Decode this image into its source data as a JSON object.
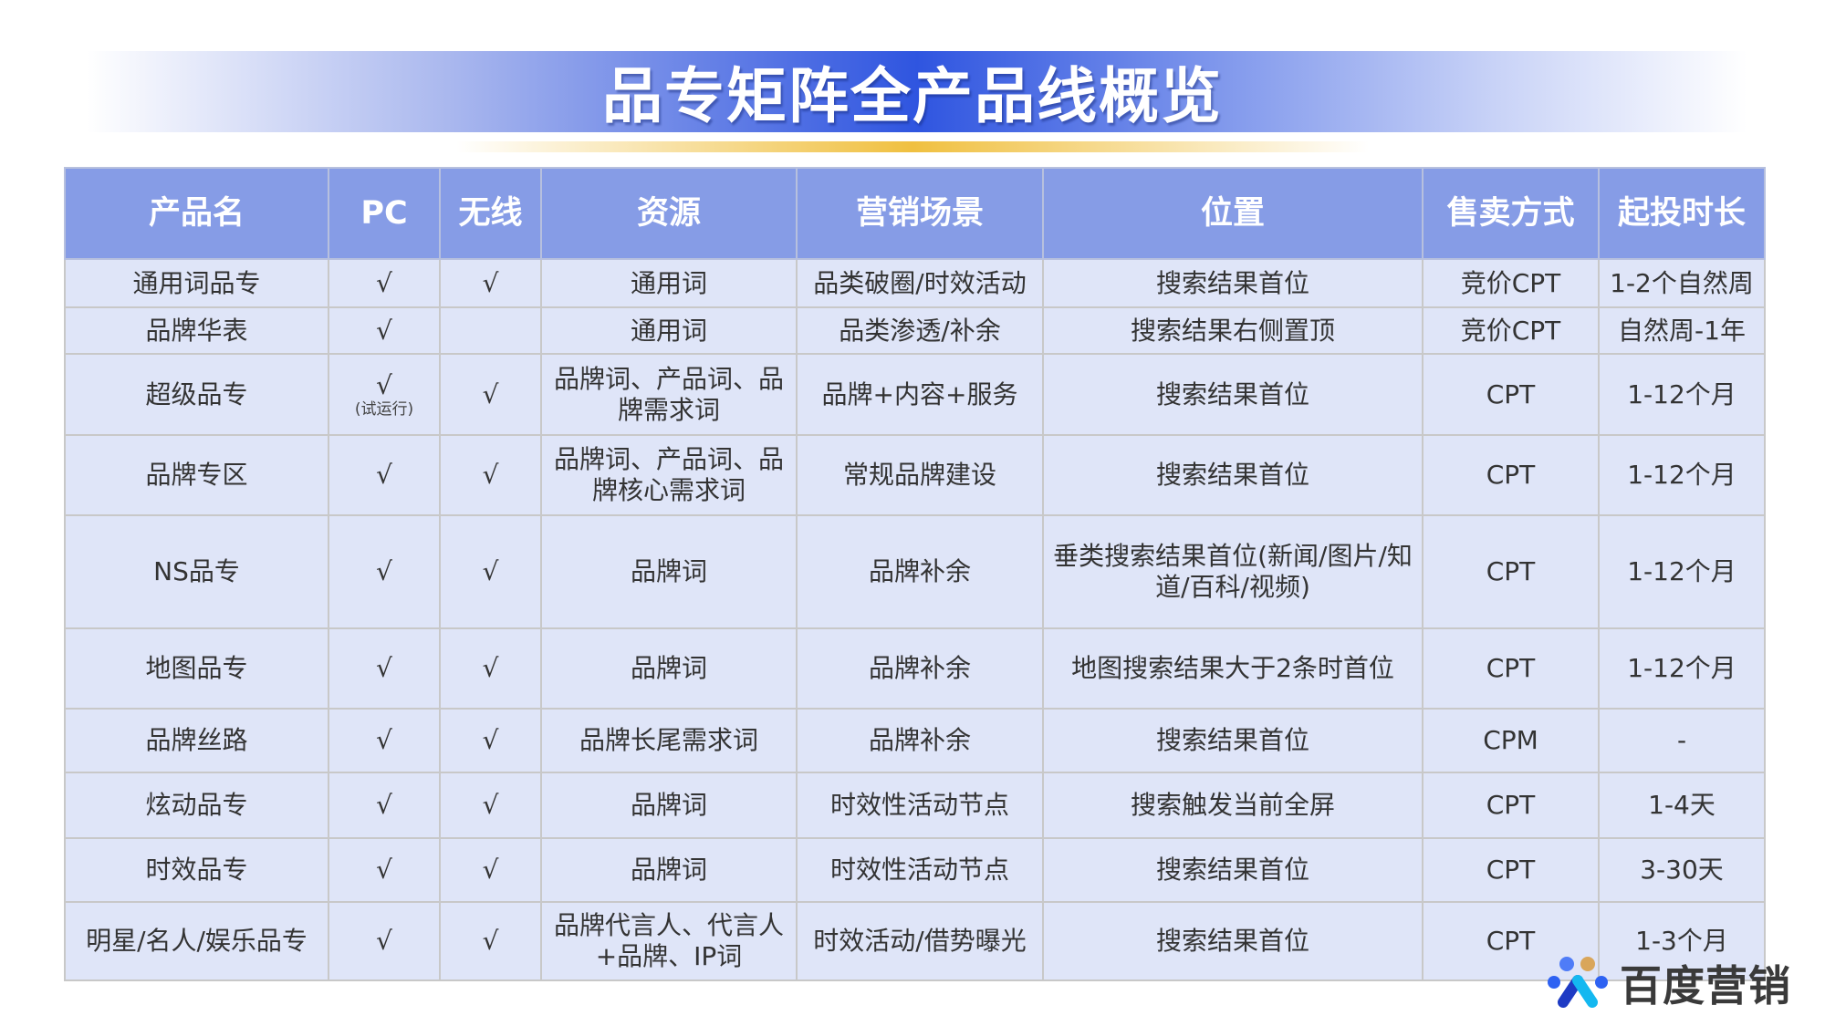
{
  "title": "品专矩阵全产品线概览",
  "table": {
    "headers": [
      "产品名",
      "PC",
      "无线",
      "资源",
      "营销场景",
      "位置",
      "售卖方式",
      "起投时长"
    ],
    "rows": [
      {
        "name": "通用词品专",
        "pc": "√",
        "pc_note": "",
        "mobile": "√",
        "resource": "通用词",
        "scene": "品类破圈/时效活动",
        "position": "搜索结果首位",
        "sale": "竞价CPT",
        "duration": "1-2个自然周"
      },
      {
        "name": "品牌华表",
        "pc": "√",
        "pc_note": "",
        "mobile": "",
        "resource": "通用词",
        "scene": "品类渗透/补余",
        "position": "搜索结果右侧置顶",
        "sale": "竞价CPT",
        "duration": "自然周-1年"
      },
      {
        "name": "超级品专",
        "pc": "√",
        "pc_note": "(试运行)",
        "mobile": "√",
        "resource": "品牌词、产品词、品牌需求词",
        "scene": "品牌+内容+服务",
        "position": "搜索结果首位",
        "sale": "CPT",
        "duration": "1-12个月"
      },
      {
        "name": "品牌专区",
        "pc": "√",
        "pc_note": "",
        "mobile": "√",
        "resource": "品牌词、产品词、品牌核心需求词",
        "scene": "常规品牌建设",
        "position": "搜索结果首位",
        "sale": "CPT",
        "duration": "1-12个月"
      },
      {
        "name": "NS品专",
        "pc": "√",
        "pc_note": "",
        "mobile": "√",
        "resource": "品牌词",
        "scene": "品牌补余",
        "position": "垂类搜索结果首位(新闻/图片/知道/百科/视频)",
        "sale": "CPT",
        "duration": "1-12个月"
      },
      {
        "name": "地图品专",
        "pc": "√",
        "pc_note": "",
        "mobile": "√",
        "resource": "品牌词",
        "scene": "品牌补余",
        "position": "地图搜索结果大于2条时首位",
        "sale": "CPT",
        "duration": "1-12个月"
      },
      {
        "name": "品牌丝路",
        "pc": "√",
        "pc_note": "",
        "mobile": "√",
        "resource": "品牌长尾需求词",
        "scene": "品牌补余",
        "position": "搜索结果首位",
        "sale": "CPM",
        "duration": "-"
      },
      {
        "name": "炫动品专",
        "pc": "√",
        "pc_note": "",
        "mobile": "√",
        "resource": "品牌词",
        "scene": "时效性活动节点",
        "position": "搜索触发当前全屏",
        "sale": "CPT",
        "duration": "1-4天"
      },
      {
        "name": "时效品专",
        "pc": "√",
        "pc_note": "",
        "mobile": "√",
        "resource": "品牌词",
        "scene": "时效性活动节点",
        "position": "搜索结果首位",
        "sale": "CPT",
        "duration": "3-30天"
      },
      {
        "name": "明星/名人/娱乐品专",
        "pc": "√",
        "pc_note": "",
        "mobile": "√",
        "resource": "品牌代言人、代言人+品牌、IP词",
        "scene": "时效活动/借势曝光",
        "position": "搜索结果首位",
        "sale": "CPT",
        "duration": "1-3个月"
      }
    ]
  },
  "logo": {
    "text": "百度营销"
  },
  "colors": {
    "header": "#869ce6",
    "row": "#dfe5f8",
    "title_blue": "#2f55e0",
    "gold": "#f0c040"
  }
}
